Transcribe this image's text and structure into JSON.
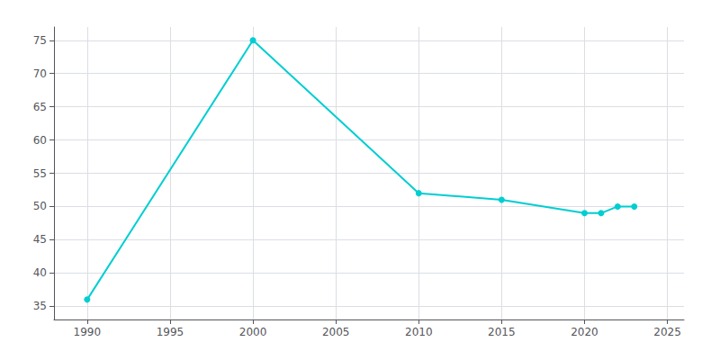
{
  "chart_data": {
    "type": "line",
    "x": [
      1990,
      2000,
      2010,
      2015,
      2020,
      2021,
      2022,
      2023
    ],
    "values": [
      36,
      75,
      52,
      51,
      49,
      49,
      50,
      50
    ],
    "color": "#00CED1",
    "marker": "circle",
    "xlim": [
      1988,
      2026
    ],
    "xticks": [
      1990,
      1995,
      2000,
      2005,
      2010,
      2015,
      2020,
      2025
    ],
    "ylim": [
      33,
      77
    ],
    "yticks": [
      35,
      40,
      45,
      50,
      55,
      60,
      65,
      70,
      75
    ],
    "grid": true
  }
}
